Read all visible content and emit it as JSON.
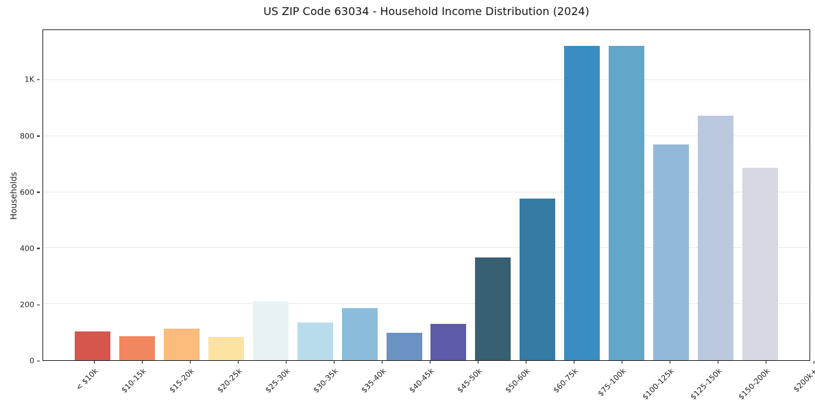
{
  "title": "US ZIP Code 63034 - Household Income Distribution (2024)",
  "chart_data": {
    "type": "bar",
    "title": "US ZIP Code 63034 - Household Income Distribution (2024)",
    "xlabel": "",
    "ylabel": "Households",
    "categories": [
      "< $10k",
      "$10-15k",
      "$15-20k",
      "$20-25k",
      "$25-30k",
      "$30-35k",
      "$35-40k",
      "$40-45k",
      "$45-50k",
      "$50-60k",
      "$60-75k",
      "$75-100k",
      "$100-125k",
      "$125-150k",
      "$150-200k",
      "$200k+"
    ],
    "values": [
      103,
      85,
      113,
      82,
      210,
      134,
      187,
      99,
      130,
      366,
      578,
      1123,
      1123,
      770,
      874,
      688
    ],
    "bar_colors": [
      "#d6564e",
      "#f2875f",
      "#fcbc7c",
      "#fde3a1",
      "#e7f2f4",
      "#b9dcea",
      "#8cbcdb",
      "#6a93c4",
      "#5c5ba8",
      "#386074",
      "#357ba3",
      "#3a8dc1",
      "#62a6ca",
      "#93b9da",
      "#bac9de",
      "#d7d8e4"
    ],
    "ylim": [
      0,
      1179
    ],
    "yticks": {
      "values": [
        0,
        200,
        400,
        600,
        800,
        1000
      ],
      "labels": [
        "0",
        "200",
        "400",
        "600",
        "800",
        "1K"
      ]
    },
    "grid": "horizontal",
    "gridline_color": "#e8e9ee",
    "spine_color": "#1c1c1c",
    "background_color": "#ffffff",
    "legend": "none",
    "x_tick_rotation_deg": 45
  }
}
